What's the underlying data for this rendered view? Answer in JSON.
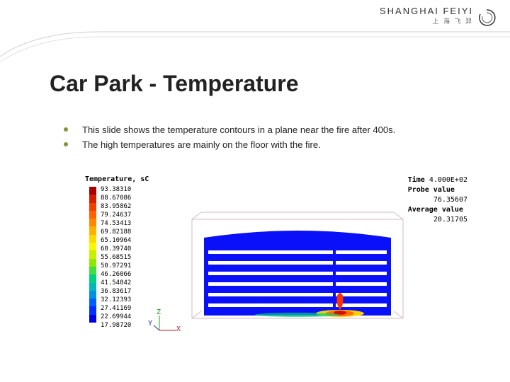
{
  "logo": {
    "main": "SHANGHAI FEIYI",
    "sub": "上 海 飞 羿"
  },
  "title": "Car Park - Temperature",
  "bullets": [
    "This slide shows the temperature contours in a plane near the fire after 400s.",
    "The high temperatures are mainly on the floor with the fire."
  ],
  "accent_color": "#7a9a3a",
  "figure": {
    "legend_title": "Temperature, sC",
    "values": [
      "93.38310",
      "88.67086",
      "83.95862",
      "79.24637",
      "74.53413",
      "69.82188",
      "65.10964",
      "60.39740",
      "55.68515",
      "50.97291",
      "46.26066",
      "41.54842",
      "36.83617",
      "32.12393",
      "27.41169",
      "22.69944",
      "17.98720"
    ],
    "colorbar_colors": [
      "#a80000",
      "#d02000",
      "#f04000",
      "#ff6000",
      "#ff8800",
      "#ffb000",
      "#ffd800",
      "#f8f800",
      "#c8f000",
      "#90e800",
      "#40e040",
      "#00d080",
      "#00b8b8",
      "#0090e0",
      "#0060ff",
      "#0030ff",
      "#0000e0"
    ],
    "meta": {
      "time_label": "Time",
      "time_value": "4.000E+02",
      "probe_label": "Probe value",
      "probe_value": "76.35607",
      "avg_label": "Average value",
      "avg_value": "20.31705"
    },
    "contour": {
      "background": "#0a10f8",
      "deck_color": "#ffffff",
      "outline": "#d4b8c0",
      "num_decks": 6,
      "axes": {
        "x": "X",
        "y": "Y",
        "z": "Z"
      }
    }
  }
}
